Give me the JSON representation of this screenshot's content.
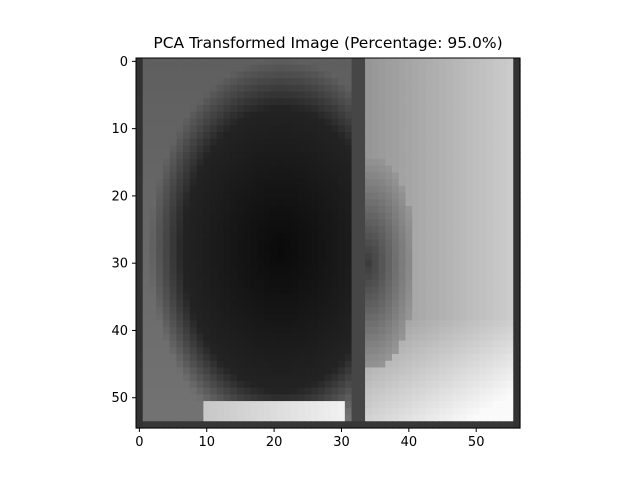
{
  "chart_data": {
    "type": "heatmap",
    "title": "PCA Transformed Image (Percentage: 95.0%)",
    "xlabel": "",
    "ylabel": "",
    "colormap": "gray",
    "columns": 57,
    "rows": 55,
    "xlim": [
      -0.5,
      56.5
    ],
    "ylim": [
      54.5,
      -0.5
    ],
    "x_ticks": [
      0,
      10,
      20,
      30,
      40,
      50
    ],
    "y_ticks": [
      0,
      10,
      20,
      30,
      40,
      50
    ],
    "grid": false,
    "values_description": "grayscale intensity 0-255: dark oval (approx. cols 5-35, rows 5-50) on mid-gray left half; bright right side (cols 34-55) brightest at lower right; dark border columns 0 and 56, dark bottom row, dark seam near col 32-33"
  }
}
